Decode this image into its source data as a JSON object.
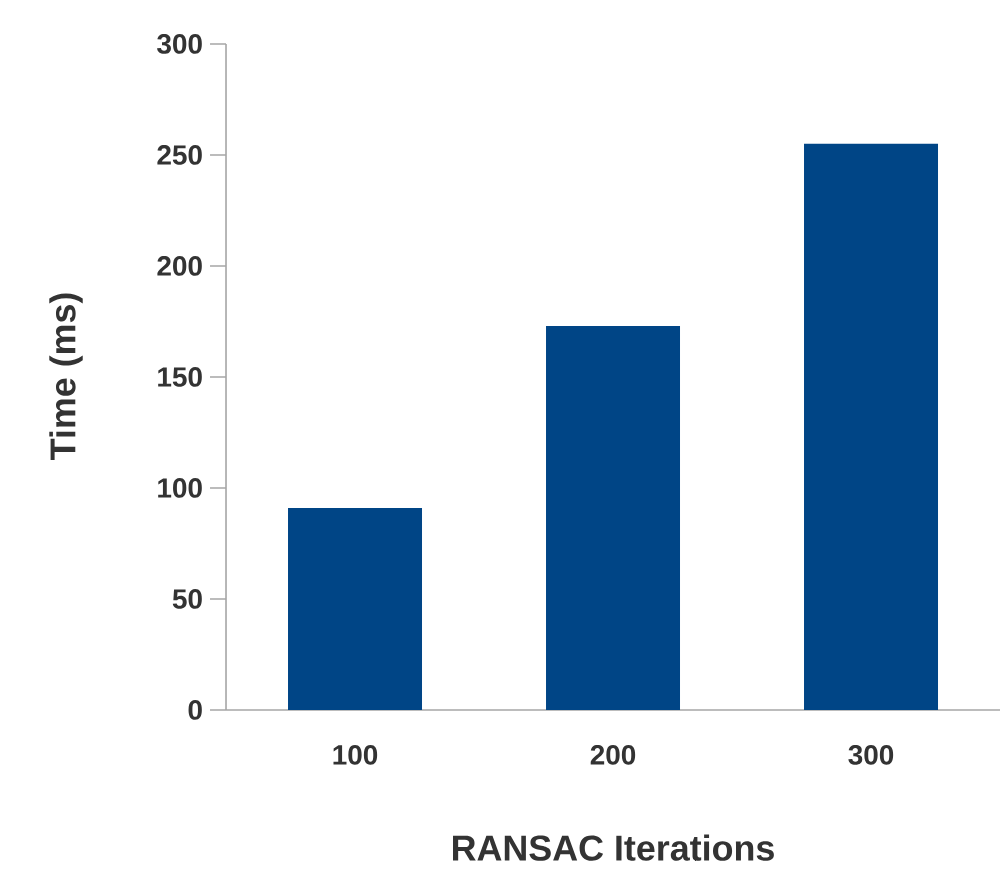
{
  "chart_data": {
    "type": "bar",
    "xlabel": "RANSAC Iterations",
    "ylabel": "Time (ms)",
    "categories": [
      "100",
      "200",
      "300"
    ],
    "values": [
      91,
      173,
      255
    ],
    "color": "#004586",
    "ylim": [
      0,
      300
    ],
    "yticks": [
      0,
      50,
      100,
      150,
      200,
      250,
      300
    ],
    "grid": false
  }
}
